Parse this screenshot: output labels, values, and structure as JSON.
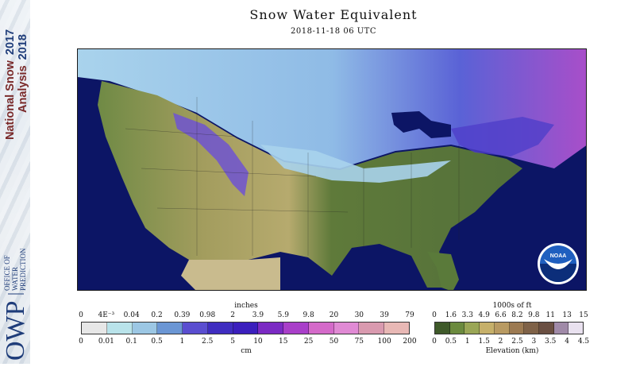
{
  "header": {
    "title": "Snow Water Equivalent",
    "timestamp": "2018-11-18 06 UTC"
  },
  "sidebar": {
    "line1": "National Snow",
    "year1": "2017",
    "line2": "Analysis",
    "year2": "2018",
    "office_lines": [
      "OFFICE OF",
      "WATER",
      "PREDICTION"
    ],
    "owp": "OWP",
    "text_color": "#7a2a2a",
    "accent": "#1f3d7a"
  },
  "map": {
    "logo_text": "NOAA",
    "colors": {
      "ocean": "#0c1565",
      "land_low": "#5a7a3a",
      "land_mid": "#a9a560",
      "desert": "#c9bb8e",
      "snow_light": "#a7cfe9",
      "snow_mid": "#6a96d8",
      "snow_deep": "#4f3ec9",
      "snow_max": "#b54ec7"
    }
  },
  "legend_swe": {
    "title_top": "inches",
    "title_bottom": "cm",
    "inches_ticks": [
      "0",
      "4E⁻³",
      "0.04",
      "0.2",
      "0.39",
      "0.98",
      "2",
      "3.9",
      "5.9",
      "9.8",
      "20",
      "30",
      "39",
      "79"
    ],
    "cm_ticks": [
      "0",
      "0.01",
      "0.1",
      "0.5",
      "1",
      "2.5",
      "5",
      "10",
      "15",
      "25",
      "50",
      "75",
      "100",
      "200"
    ],
    "colors": [
      "#e7e7e7",
      "#b9e3ea",
      "#9cc7e4",
      "#6b96d4",
      "#5a4ed0",
      "#3f2dc0",
      "#3b1fbd",
      "#7b2ac3",
      "#a93fc9",
      "#d46ac9",
      "#e08ad4",
      "#d99aaf",
      "#e8b8b5"
    ]
  },
  "legend_elev": {
    "title_top": "1000s of ft",
    "title_bottom": "Elevation (km)",
    "ft_ticks": [
      "0",
      "1.6",
      "3.3",
      "4.9",
      "6.6",
      "8.2",
      "9.8",
      "11",
      "13",
      "15"
    ],
    "km_ticks": [
      "0",
      "0.5",
      "1",
      "1.5",
      "2",
      "2.5",
      "3",
      "3.5",
      "4",
      "4.5"
    ],
    "colors": [
      "#3f5a2a",
      "#6b8a3e",
      "#9aa656",
      "#c6b06a",
      "#b89a62",
      "#9c7a52",
      "#7f6248",
      "#6a4f42",
      "#a08aa8",
      "#e9e1ef"
    ]
  }
}
